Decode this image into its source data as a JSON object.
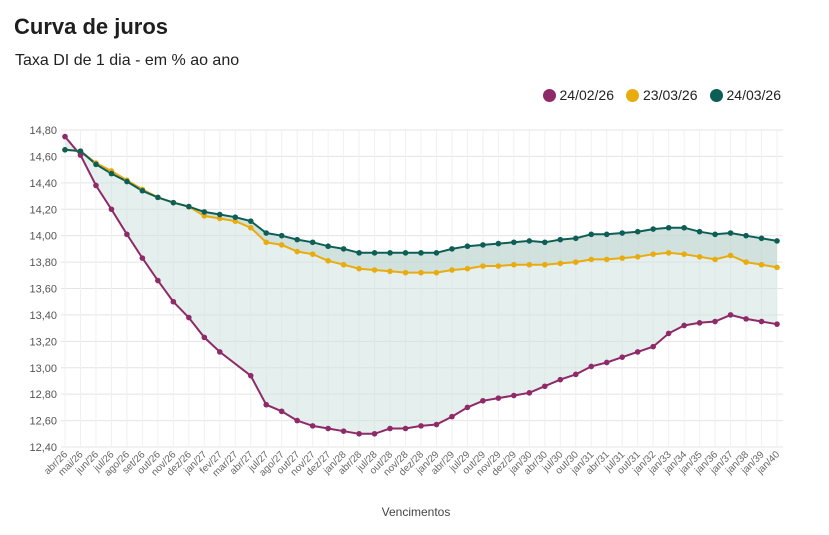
{
  "chart_data": {
    "type": "line",
    "title": "Curva de juros",
    "subtitle": "Taxa DI de 1 dia - em % ao ano",
    "xlabel": "Vencimentos",
    "ylabel": "",
    "ylim": [
      12.4,
      14.8
    ],
    "yticks": [
      "14,80",
      "14,60",
      "14,40",
      "14,20",
      "14,00",
      "13,80",
      "13,60",
      "13,40",
      "13,20",
      "13,00",
      "12,80",
      "12,60",
      "12,40"
    ],
    "ytick_values": [
      14.8,
      14.6,
      14.4,
      14.2,
      14.0,
      13.8,
      13.6,
      13.4,
      13.2,
      13.0,
      12.8,
      12.6,
      12.4
    ],
    "grid": true,
    "legend_position": "top-right",
    "xtick_labels": [
      "abr/26",
      "mai/26",
      "jun/26",
      "jul/26",
      "ago/26",
      "set/26",
      "out/26",
      "nov/26",
      "dez/26",
      "jan/27",
      "fev/27",
      "mar/27",
      "abr/27",
      "jul/27",
      "ago/27",
      "out/27",
      "nov/27",
      "dez/27",
      "jan/28",
      "abr/28",
      "jul/28",
      "out/28",
      "nov/28",
      "dez/28",
      "jan/29",
      "abr/29",
      "jul/29",
      "out/29",
      "nov/29",
      "dez/29",
      "jan/30",
      "abr/30",
      "jul/30",
      "out/30",
      "jan/31",
      "abr/31",
      "jul/31",
      "out/31",
      "jan/32",
      "jan/33",
      "jan/34",
      "jan/35",
      "jan/36",
      "jan/37",
      "jan/38",
      "jan/39",
      "jan/40"
    ],
    "series": [
      {
        "name": "24/02/26",
        "color": "#8e2a67",
        "values": [
          14.75,
          14.61,
          14.38,
          14.2,
          14.01,
          13.83,
          13.66,
          13.5,
          13.38,
          13.23,
          13.12,
          null,
          12.94,
          12.72,
          12.67,
          12.6,
          12.56,
          12.54,
          12.52,
          12.5,
          12.5,
          12.54,
          12.54,
          12.56,
          12.57,
          12.63,
          12.7,
          12.75,
          12.77,
          12.79,
          12.81,
          12.86,
          12.91,
          12.95,
          13.01,
          13.04,
          13.08,
          13.12,
          13.16,
          13.26,
          13.32,
          13.34,
          13.35,
          13.4,
          13.37,
          13.35,
          13.33
        ]
      },
      {
        "name": "23/03/26",
        "color": "#e8ac10",
        "values": [
          14.65,
          14.64,
          14.55,
          14.49,
          14.42,
          14.35,
          14.29,
          14.25,
          14.22,
          14.15,
          14.13,
          14.11,
          14.06,
          13.95,
          13.93,
          13.88,
          13.86,
          13.81,
          13.78,
          13.75,
          13.74,
          13.73,
          13.72,
          13.72,
          13.72,
          13.74,
          13.75,
          13.77,
          13.77,
          13.78,
          13.78,
          13.78,
          13.79,
          13.8,
          13.82,
          13.82,
          13.83,
          13.84,
          13.86,
          13.87,
          13.86,
          13.84,
          13.82,
          13.85,
          13.8,
          13.78,
          13.76
        ]
      },
      {
        "name": "24/03/26",
        "color": "#0d5f56",
        "values": [
          14.65,
          14.64,
          14.54,
          14.47,
          14.41,
          14.34,
          14.29,
          14.25,
          14.22,
          14.18,
          14.16,
          14.14,
          14.11,
          14.02,
          14.0,
          13.97,
          13.95,
          13.92,
          13.9,
          13.87,
          13.87,
          13.87,
          13.87,
          13.87,
          13.87,
          13.9,
          13.92,
          13.93,
          13.94,
          13.95,
          13.96,
          13.95,
          13.97,
          13.98,
          14.01,
          14.01,
          14.02,
          14.03,
          14.05,
          14.06,
          14.06,
          14.03,
          14.01,
          14.02,
          14.0,
          13.98,
          13.96
        ]
      }
    ]
  }
}
